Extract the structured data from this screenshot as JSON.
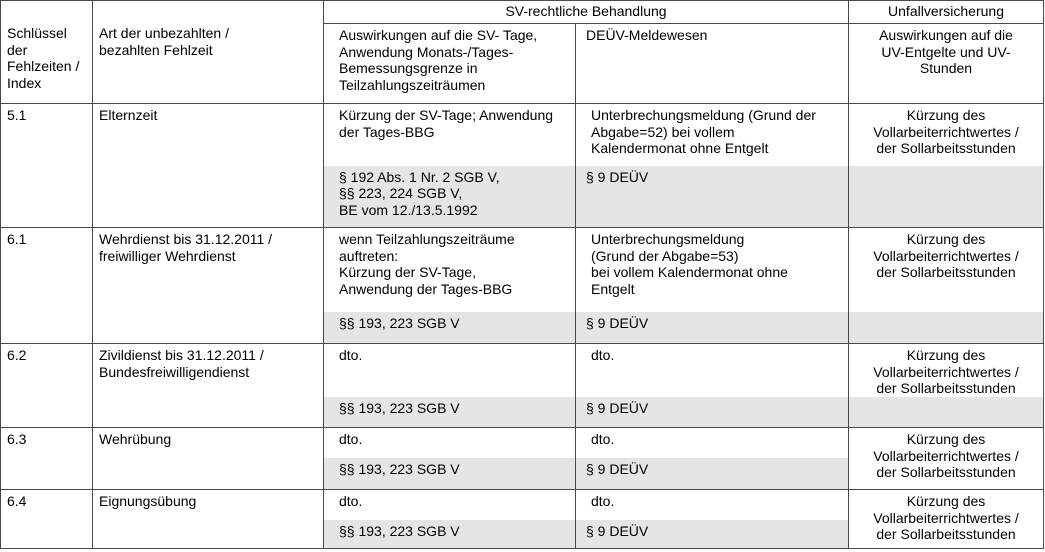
{
  "header": {
    "key_label": "Schlüssel\nder\nFehlzeiten /\nIndex",
    "type_label": "Art der unbezahlten /\nbezahlten Fehlzeit",
    "sv_group": "SV-rechtliche Behandlung",
    "uv_group": "Unfallversicherung",
    "sv_days_label": "Auswirkungen auf die SV- Tage,\nAnwendung Monats-/Tages-\nBemessungsgrenze in\nTeilzahlungszeiträumen",
    "deuev_label": "DEÜV-Meldewesen",
    "uv_label": "Auswirkungen auf die\nUV-Entgelte und UV-\nStunden"
  },
  "rows": [
    {
      "key": "5.1",
      "type": "Elternzeit",
      "sv_days": "Kürzung der SV-Tage; Anwendung\nder Tages-BBG",
      "deuev": "Unterbrechungsmeldung (Grund der\nAbgabe=52) bei vollem\nKalendermonat ohne Entgelt",
      "uv": "Kürzung des\nVollarbeiterrichtwertes /\nder Sollarbeitsstunden",
      "sv_law": "§ 192 Abs. 1 Nr. 2 SGB V,\n§§ 223, 224 SGB V,\nBE vom 12./13.5.1992",
      "deuev_law": "§ 9 DEÜV"
    },
    {
      "key": "6.1",
      "type": "Wehrdienst bis 31.12.2011 /\nfreiwilliger Wehrdienst",
      "sv_days": "wenn Teilzahlungszeiträume\nauftreten:\nKürzung der SV-Tage,\nAnwendung der Tages-BBG",
      "deuev": "Unterbrechungsmeldung\n(Grund der Abgabe=53)\nbei vollem Kalendermonat ohne\nEntgelt",
      "uv": "Kürzung des\nVollarbeiterrichtwertes /\nder Sollarbeitsstunden",
      "sv_law": "§§ 193, 223 SGB V",
      "deuev_law": "§ 9 DEÜV"
    },
    {
      "key": "6.2",
      "type": "Zivildienst bis 31.12.2011 /\nBundesfreiwilligendienst",
      "sv_days": "dto.",
      "deuev": "dto.",
      "uv": "Kürzung des\nVollarbeiterrichtwertes /\nder Sollarbeitsstunden",
      "sv_law": "§§ 193, 223 SGB V",
      "deuev_law": "§ 9 DEÜV"
    },
    {
      "key": "6.3",
      "type": "Wehrübung",
      "sv_days": "dto.",
      "deuev": "dto.",
      "uv": "Kürzung des\nVollarbeiterrichtwertes /\nder Sollarbeitsstunden",
      "sv_law": "§§ 193, 223 SGB V",
      "deuev_law": "§ 9 DEÜV"
    },
    {
      "key": "6.4",
      "type": "Eignungsübung",
      "sv_days": "dto.",
      "deuev": "dto.",
      "uv": "Kürzung des\nVollarbeiterrichtwertes /\nder Sollarbeitsstunden",
      "sv_law": "§§ 193, 223 SGB V",
      "deuev_law": "§ 9 DEÜV"
    }
  ]
}
